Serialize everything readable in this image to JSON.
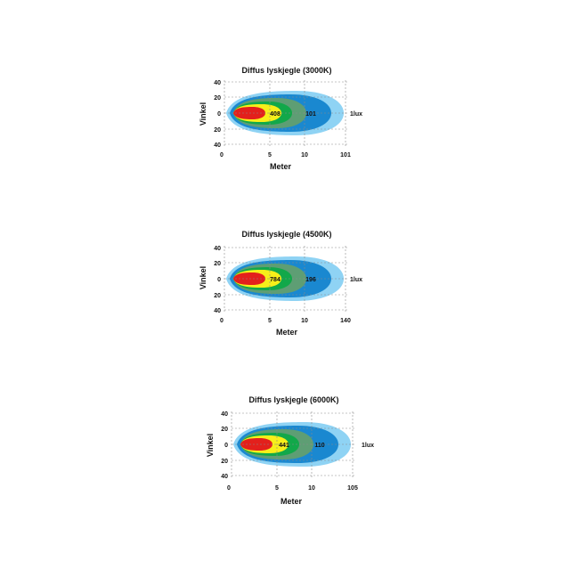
{
  "chart_data": [
    {
      "type": "area",
      "title": "Diffus lyskjegle (3000K)",
      "xlabel": "Meter",
      "ylabel": "Vinkel",
      "x_ticks": [
        "0",
        "5",
        "10",
        "101"
      ],
      "y_ticks": [
        "40",
        "20",
        "0",
        "20",
        "40"
      ],
      "grid": true,
      "isolux_labels": [
        "408",
        "101",
        "1lux"
      ],
      "colors": [
        "#8fd3f4",
        "#1a88d0",
        "#5e9e74",
        "#12a84a",
        "#f7ef1a",
        "#e3201c"
      ]
    },
    {
      "type": "area",
      "title": "Diffus lyskjegle (4500K)",
      "xlabel": "Meter",
      "ylabel": "Vinkel",
      "x_ticks": [
        "0",
        "5",
        "10",
        "140"
      ],
      "y_ticks": [
        "40",
        "20",
        "0",
        "20",
        "40"
      ],
      "grid": true,
      "isolux_labels": [
        "784",
        "196",
        "1lux"
      ],
      "colors": [
        "#8fd3f4",
        "#1a88d0",
        "#5e9e74",
        "#12a84a",
        "#f7ef1a",
        "#e3201c"
      ]
    },
    {
      "type": "area",
      "title": "Diffus lyskjegle (6000K)",
      "xlabel": "Meter",
      "ylabel": "Vinkel",
      "x_ticks": [
        "0",
        "5",
        "10",
        "105"
      ],
      "y_ticks": [
        "40",
        "20",
        "0",
        "20",
        "40"
      ],
      "grid": true,
      "isolux_labels": [
        "441",
        "110",
        "1lux"
      ],
      "colors": [
        "#8fd3f4",
        "#1a88d0",
        "#5e9e74",
        "#12a84a",
        "#f7ef1a",
        "#e3201c"
      ]
    }
  ]
}
